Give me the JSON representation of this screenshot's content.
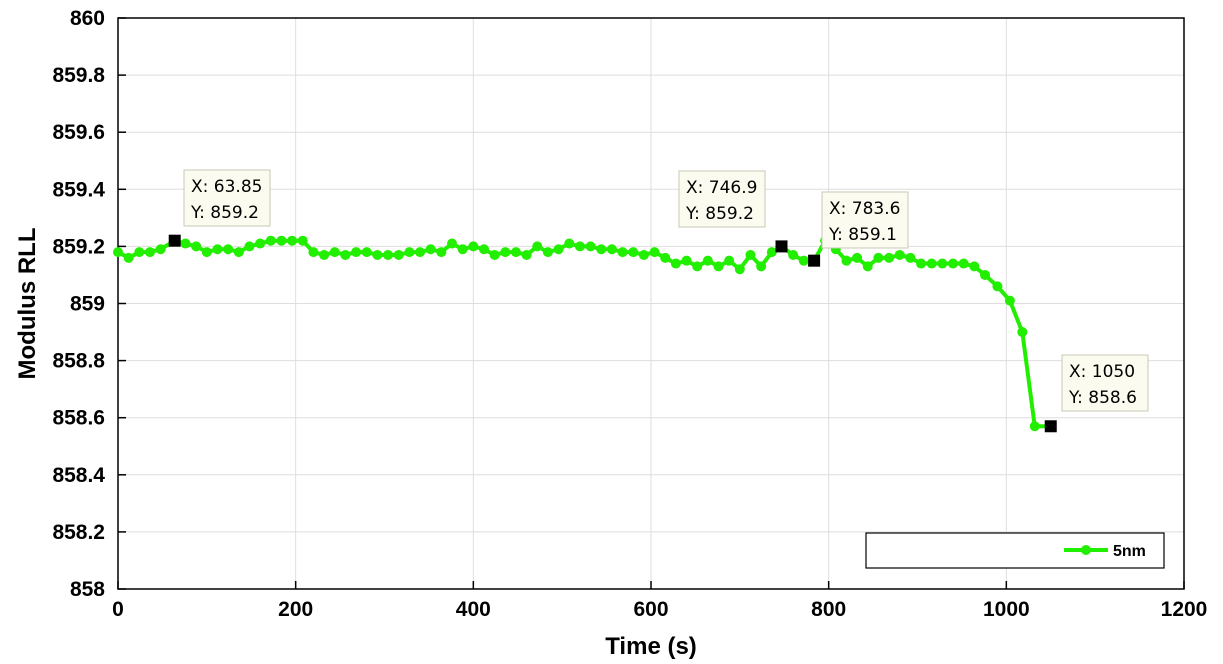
{
  "chart_data": {
    "type": "line",
    "title": "",
    "xlabel": "Time (s)",
    "ylabel": "Modulus RLL",
    "xlim": [
      0,
      1200
    ],
    "ylim": [
      858,
      860
    ],
    "x_ticks": [
      0,
      200,
      400,
      600,
      800,
      1000,
      1200
    ],
    "x_tick_labels": [
      "0",
      "200",
      "400",
      "600",
      "800",
      "1000",
      "1200"
    ],
    "y_ticks": [
      858,
      858.2,
      858.4,
      858.6,
      858.8,
      859,
      859.2,
      859.4,
      859.6,
      859.8,
      860
    ],
    "y_tick_labels": [
      "858",
      "858.2",
      "858.4",
      "858.6",
      "858.8",
      "859",
      "859.2",
      "859.4",
      "859.6",
      "859.8",
      "860"
    ],
    "grid": true,
    "legend_location": "bottom-right",
    "series": [
      {
        "name": "5nm",
        "color": "#22ee00",
        "marker": "circle",
        "x": [
          0,
          12,
          24,
          36,
          48,
          63.85,
          76,
          88,
          100,
          112,
          124,
          136,
          148,
          160,
          172,
          184,
          196,
          208,
          220,
          232,
          244,
          256,
          268,
          280,
          292,
          304,
          316,
          328,
          340,
          352,
          364,
          376,
          388,
          400,
          412,
          424,
          436,
          448,
          460,
          472,
          484,
          496,
          508,
          520,
          532,
          544,
          556,
          568,
          580,
          592,
          604,
          616,
          628,
          640,
          652,
          664,
          676,
          688,
          700,
          712,
          724,
          736,
          746.9,
          760,
          772,
          783.6,
          796,
          808,
          820,
          832,
          844,
          856,
          868,
          880,
          892,
          904,
          916,
          928,
          940,
          952,
          964,
          976,
          990,
          1004,
          1018,
          1032,
          1050
        ],
        "y": [
          859.18,
          859.16,
          859.18,
          859.18,
          859.19,
          859.22,
          859.21,
          859.2,
          859.18,
          859.19,
          859.19,
          859.18,
          859.2,
          859.21,
          859.22,
          859.22,
          859.22,
          859.22,
          859.18,
          859.17,
          859.18,
          859.17,
          859.18,
          859.18,
          859.17,
          859.17,
          859.17,
          859.18,
          859.18,
          859.19,
          859.18,
          859.21,
          859.19,
          859.2,
          859.19,
          859.17,
          859.18,
          859.18,
          859.17,
          859.2,
          859.18,
          859.19,
          859.21,
          859.2,
          859.2,
          859.19,
          859.19,
          859.18,
          859.18,
          859.17,
          859.18,
          859.16,
          859.14,
          859.15,
          859.13,
          859.15,
          859.13,
          859.15,
          859.12,
          859.17,
          859.13,
          859.18,
          859.2,
          859.17,
          859.15,
          859.15,
          859.22,
          859.19,
          859.15,
          859.16,
          859.13,
          859.16,
          859.16,
          859.17,
          859.16,
          859.14,
          859.14,
          859.14,
          859.14,
          859.14,
          859.13,
          859.1,
          859.06,
          859.01,
          858.9,
          858.57,
          858.57
        ]
      }
    ],
    "markers": [
      {
        "x": 63.85,
        "y": 859.22
      },
      {
        "x": 746.9,
        "y": 859.2
      },
      {
        "x": 783.6,
        "y": 859.15
      },
      {
        "x": 1050,
        "y": 858.57
      }
    ],
    "annotations": [
      {
        "line1": "X: 63.85",
        "line2": "Y: 859.2"
      },
      {
        "line1": "X: 746.9",
        "line2": "Y: 859.2"
      },
      {
        "line1": "X: 783.6",
        "line2": "Y: 859.1"
      },
      {
        "line1": "X: 1050",
        "line2": "Y: 858.6"
      }
    ]
  }
}
